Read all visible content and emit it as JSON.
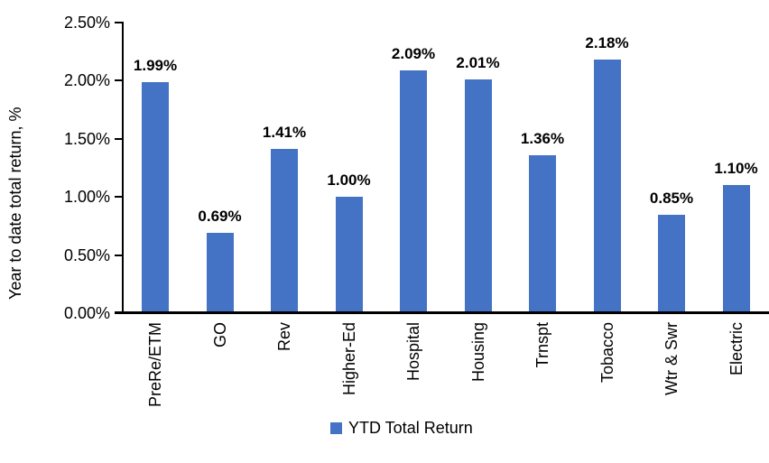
{
  "chart": {
    "y_axis_title": "Year to date total return, %",
    "tick_labels": [
      "0.00%",
      "0.50%",
      "1.00%",
      "1.50%",
      "2.00%",
      "2.50%"
    ],
    "tick_values": [
      0,
      0.5,
      1,
      1.5,
      2,
      2.5
    ],
    "bar_color": "#4472C4",
    "axis_color": "#000000",
    "legend": {
      "label": "YTD Total Return",
      "swatch_color": "#4472C4"
    }
  },
  "chart_data": {
    "type": "bar",
    "categories": [
      "PreRe/ETM",
      "GO",
      "Rev",
      "Higher-Ed",
      "Hospital",
      "Housing",
      "Trnspt",
      "Tobacco",
      "Wtr & Swr",
      "Electric"
    ],
    "values": [
      1.99,
      0.69,
      1.41,
      1.0,
      2.09,
      2.01,
      1.36,
      2.18,
      0.85,
      1.1
    ],
    "data_labels": [
      "1.99%",
      "0.69%",
      "1.41%",
      "1.00%",
      "2.09%",
      "2.01%",
      "1.36%",
      "2.18%",
      "0.85%",
      "1.10%"
    ],
    "title": "",
    "xlabel": "",
    "ylabel": "Year to date total return, %",
    "ylim": [
      0,
      2.5
    ],
    "grid": false,
    "legend_entries": [
      "YTD Total Return"
    ],
    "legend_position": "bottom"
  }
}
